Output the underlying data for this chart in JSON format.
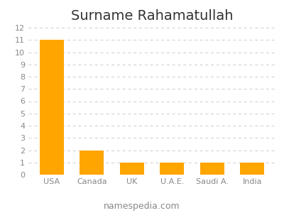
{
  "title": "Surname Rahamatullah",
  "categories": [
    "USA",
    "Canada",
    "UK",
    "U.A.E.",
    "Saudi A.",
    "India"
  ],
  "values": [
    11,
    2,
    1,
    1,
    1,
    1
  ],
  "bar_color": "#FFA500",
  "ylim": [
    0,
    12
  ],
  "yticks": [
    0,
    1,
    2,
    3,
    4,
    5,
    6,
    7,
    8,
    9,
    10,
    11,
    12
  ],
  "background_color": "#ffffff",
  "title_fontsize": 14,
  "tick_fontsize": 8,
  "footer_text": "namespedia.com",
  "footer_fontsize": 9,
  "grid_color": "#cccccc",
  "text_color": "#888888",
  "title_color": "#333333"
}
